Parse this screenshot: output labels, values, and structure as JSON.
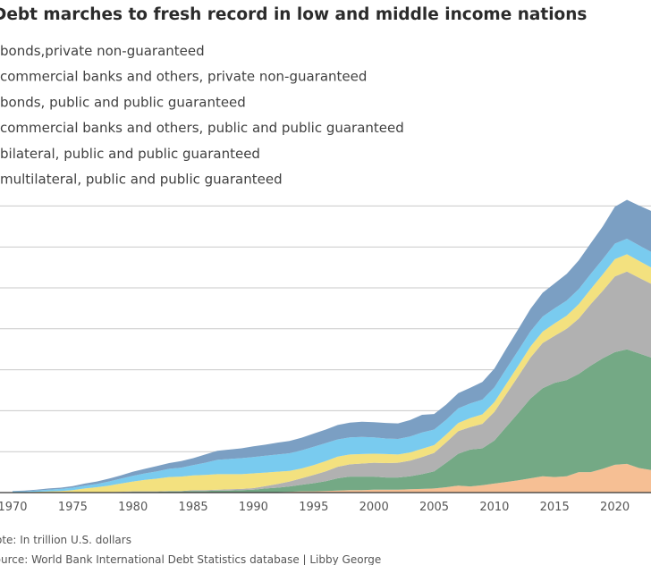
{
  "chart_data": {
    "type": "area",
    "stacked": true,
    "title": "Debt marches to fresh record in low and middle income nations",
    "xlabel": "",
    "ylabel": "",
    "x": [
      1970,
      1971,
      1972,
      1973,
      1974,
      1975,
      1976,
      1977,
      1978,
      1979,
      1980,
      1981,
      1982,
      1983,
      1984,
      1985,
      1986,
      1987,
      1988,
      1989,
      1990,
      1991,
      1992,
      1993,
      1994,
      1995,
      1996,
      1997,
      1998,
      1999,
      2000,
      2001,
      2002,
      2003,
      2004,
      2005,
      2006,
      2007,
      2008,
      2009,
      2010,
      2011,
      2012,
      2013,
      2014,
      2015,
      2016,
      2017,
      2018,
      2019,
      2020,
      2021,
      2022,
      2023
    ],
    "xticks": [
      "1970",
      "1975",
      "1980",
      "1985",
      "1990",
      "1995",
      "2000",
      "2005",
      "2010",
      "2015",
      "2020"
    ],
    "xlim": [
      1970,
      2023
    ],
    "ylim": [
      0,
      9.3
    ],
    "gridlines": [
      0,
      1,
      2,
      3,
      4,
      5,
      6,
      7
    ],
    "series": [
      {
        "name": "bonds,private non-guaranteed",
        "color": "#f6bf94",
        "values": [
          0,
          0,
          0,
          0,
          0,
          0,
          0,
          0,
          0,
          0,
          0,
          0,
          0,
          0,
          0,
          0,
          0,
          0,
          0,
          0,
          0,
          0.01,
          0.01,
          0.02,
          0.03,
          0.03,
          0.04,
          0.05,
          0.06,
          0.06,
          0.07,
          0.07,
          0.07,
          0.08,
          0.09,
          0.1,
          0.13,
          0.17,
          0.15,
          0.18,
          0.22,
          0.26,
          0.3,
          0.35,
          0.4,
          0.38,
          0.4,
          0.5,
          0.5,
          0.58,
          0.68,
          0.7,
          0.6,
          0.55
        ]
      },
      {
        "name": "commercial banks and others, private non-guaranteed",
        "color": "#74a985",
        "values": [
          0,
          0,
          0,
          0,
          0,
          0,
          0.01,
          0.01,
          0.01,
          0.01,
          0.02,
          0.02,
          0.02,
          0.03,
          0.03,
          0.04,
          0.04,
          0.05,
          0.05,
          0.06,
          0.07,
          0.09,
          0.11,
          0.13,
          0.16,
          0.2,
          0.24,
          0.3,
          0.33,
          0.33,
          0.32,
          0.3,
          0.3,
          0.32,
          0.36,
          0.42,
          0.6,
          0.78,
          0.9,
          0.9,
          1.05,
          1.35,
          1.65,
          1.95,
          2.15,
          2.3,
          2.35,
          2.4,
          2.6,
          2.7,
          2.75,
          2.8,
          2.8,
          2.75
        ]
      },
      {
        "name": "bonds, public and public guaranteed",
        "color": "#b1b1b1",
        "values": [
          0,
          0,
          0,
          0,
          0,
          0,
          0,
          0,
          0,
          0.01,
          0.01,
          0.01,
          0.01,
          0.01,
          0.01,
          0.02,
          0.02,
          0.02,
          0.03,
          0.03,
          0.04,
          0.06,
          0.09,
          0.12,
          0.16,
          0.2,
          0.24,
          0.28,
          0.3,
          0.32,
          0.34,
          0.35,
          0.36,
          0.38,
          0.42,
          0.45,
          0.5,
          0.55,
          0.55,
          0.6,
          0.7,
          0.8,
          0.9,
          1.0,
          1.1,
          1.15,
          1.25,
          1.35,
          1.5,
          1.65,
          1.85,
          1.9,
          1.85,
          1.8
        ]
      },
      {
        "name": "commercial banks and others, public and public guaranteed",
        "color": "#f3e17f",
        "values": [
          0.01,
          0.01,
          0.02,
          0.03,
          0.04,
          0.06,
          0.09,
          0.12,
          0.16,
          0.2,
          0.24,
          0.28,
          0.31,
          0.34,
          0.35,
          0.36,
          0.37,
          0.38,
          0.37,
          0.36,
          0.36,
          0.33,
          0.3,
          0.26,
          0.24,
          0.24,
          0.25,
          0.25,
          0.24,
          0.23,
          0.22,
          0.22,
          0.2,
          0.2,
          0.2,
          0.19,
          0.19,
          0.2,
          0.22,
          0.23,
          0.24,
          0.25,
          0.26,
          0.27,
          0.28,
          0.3,
          0.32,
          0.35,
          0.37,
          0.4,
          0.42,
          0.42,
          0.41,
          0.4
        ]
      },
      {
        "name": "bilateral, public and public guaranteed",
        "color": "#79cbef",
        "values": [
          0.02,
          0.02,
          0.03,
          0.04,
          0.05,
          0.06,
          0.07,
          0.08,
          0.1,
          0.12,
          0.14,
          0.16,
          0.18,
          0.2,
          0.22,
          0.25,
          0.3,
          0.35,
          0.37,
          0.39,
          0.4,
          0.41,
          0.42,
          0.43,
          0.44,
          0.45,
          0.44,
          0.42,
          0.42,
          0.42,
          0.4,
          0.38,
          0.38,
          0.39,
          0.4,
          0.38,
          0.36,
          0.36,
          0.36,
          0.36,
          0.36,
          0.37,
          0.37,
          0.37,
          0.37,
          0.37,
          0.37,
          0.37,
          0.37,
          0.37,
          0.38,
          0.38,
          0.38,
          0.38
        ]
      },
      {
        "name": "multilateral, public and public guaranteed",
        "color": "#7b9fc3",
        "values": [
          0.01,
          0.02,
          0.02,
          0.03,
          0.03,
          0.04,
          0.05,
          0.06,
          0.07,
          0.08,
          0.1,
          0.11,
          0.13,
          0.14,
          0.16,
          0.17,
          0.2,
          0.22,
          0.23,
          0.24,
          0.26,
          0.27,
          0.29,
          0.3,
          0.31,
          0.32,
          0.33,
          0.35,
          0.36,
          0.37,
          0.37,
          0.38,
          0.38,
          0.4,
          0.43,
          0.38,
          0.37,
          0.37,
          0.38,
          0.43,
          0.46,
          0.49,
          0.52,
          0.55,
          0.58,
          0.61,
          0.65,
          0.7,
          0.75,
          0.8,
          0.9,
          0.95,
          0.97,
          1.0
        ]
      }
    ],
    "notes": [
      "Note: In trillion U.S. dollars",
      "Source: World Bank International Debt Statistics database | Libby George"
    ]
  }
}
